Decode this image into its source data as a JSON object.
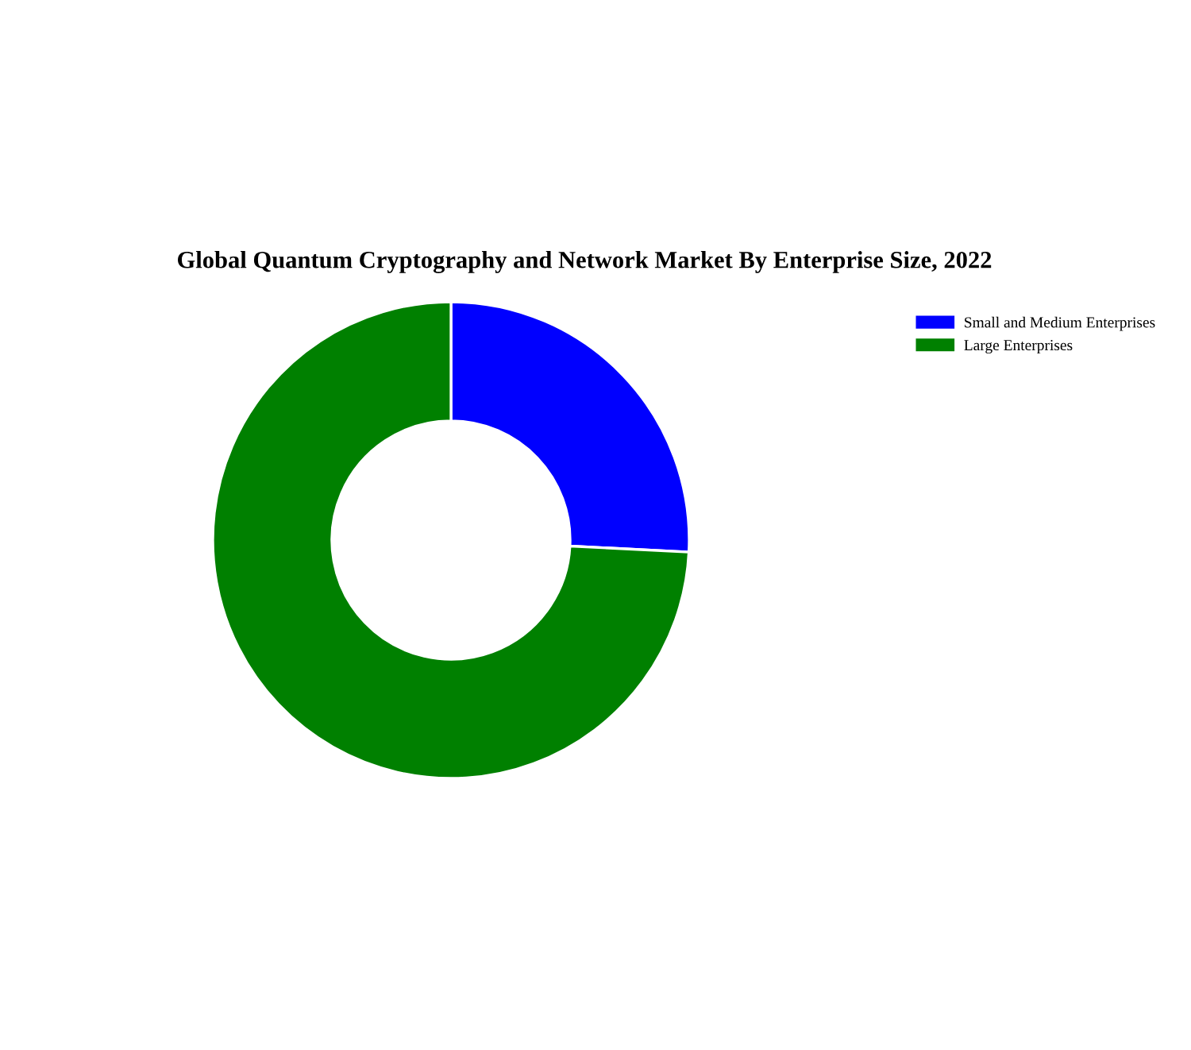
{
  "chart_data": {
    "type": "donut",
    "title": "Global Quantum Cryptography and Network Market By Enterprise Size, 2022",
    "categories": [
      "Small and Medium Enterprises",
      "Large Enterprises"
    ],
    "values": [
      25.8,
      74.2
    ],
    "colors": [
      "#0000ff",
      "#008000"
    ],
    "legend": "top right"
  }
}
